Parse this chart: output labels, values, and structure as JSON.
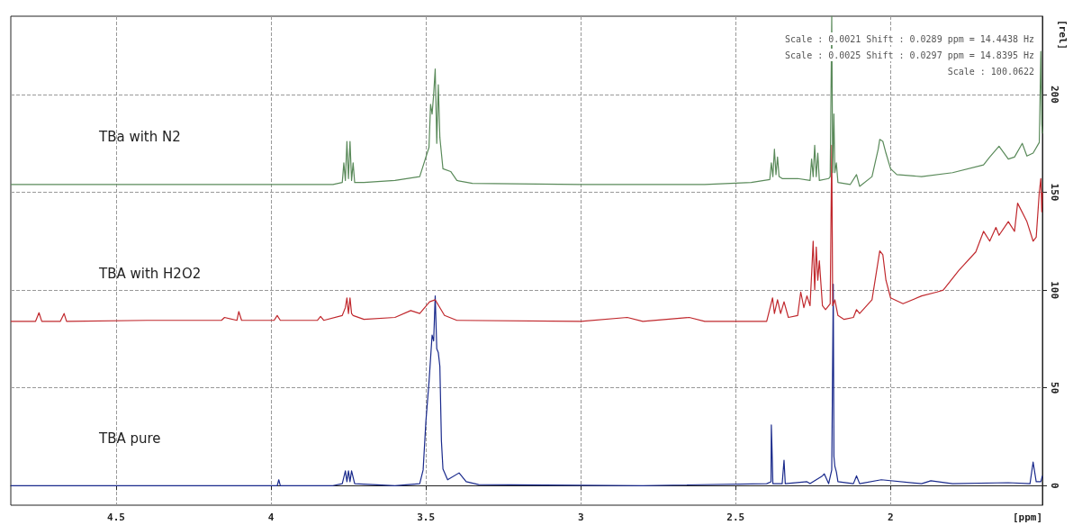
{
  "chart_data": {
    "type": "line",
    "xlabel": "[ppm]",
    "ylabel": "[rel]",
    "xlim": [
      4.84,
      1.51
    ],
    "xticks": [
      4.5,
      4.0,
      3.5,
      3.0,
      2.5,
      2.0
    ],
    "ylim": [
      -10,
      240
    ],
    "yticks": [
      0,
      50,
      100,
      150,
      200
    ],
    "grid": true,
    "legend": false,
    "marker": "none",
    "line_style": "solid",
    "annotations": [
      "Scale : 0.0021 Shift : 0.0289 ppm = 14.4438 Hz",
      "Scale : 0.0025 Shift : 0.0297 ppm = 14.8395 Hz",
      "Scale : 100.0622"
    ],
    "series": [
      {
        "name": "TBa with N2",
        "color": "#5a8a5a",
        "x": [
          4.84,
          4.6,
          4.3,
          4.0,
          3.8,
          3.77,
          3.765,
          3.76,
          3.755,
          3.75,
          3.745,
          3.74,
          3.735,
          3.73,
          3.7,
          3.6,
          3.52,
          3.49,
          3.485,
          3.48,
          3.475,
          3.47,
          3.465,
          3.46,
          3.455,
          3.45,
          3.445,
          3.42,
          3.4,
          3.35,
          3.0,
          2.6,
          2.45,
          2.39,
          2.385,
          2.38,
          2.375,
          2.37,
          2.365,
          2.36,
          2.35,
          2.3,
          2.26,
          2.255,
          2.25,
          2.245,
          2.24,
          2.235,
          2.23,
          2.2,
          2.195,
          2.19,
          2.187,
          2.183,
          2.18,
          2.175,
          2.17,
          2.13,
          2.11,
          2.1,
          2.06,
          2.04,
          2.035,
          2.025,
          2.015,
          2.0,
          1.98,
          1.9,
          1.8,
          1.7,
          1.68,
          1.65,
          1.62,
          1.6,
          1.575,
          1.56,
          1.54,
          1.52,
          1.515,
          1.512,
          1.51
        ],
        "values": [
          154,
          154,
          154,
          154,
          154,
          155,
          165,
          156,
          176,
          157,
          176,
          156,
          165,
          155,
          155,
          156,
          158,
          173,
          195,
          190,
          200,
          213,
          175,
          205,
          178,
          170,
          162,
          160.6,
          156,
          154.5,
          154,
          154,
          155,
          156.5,
          165,
          158,
          172,
          159,
          168,
          158,
          157,
          157,
          156,
          167,
          158,
          174,
          158,
          170,
          156,
          157,
          158,
          240,
          160,
          190,
          160,
          165,
          155,
          154,
          159,
          153,
          158,
          172,
          177,
          176,
          170,
          162,
          159,
          158,
          160,
          164,
          168,
          173.5,
          167,
          168,
          175,
          168.5,
          170,
          175.5,
          222,
          185,
          180
        ]
      },
      {
        "name": "TBA with H2O2",
        "color": "#c0282d",
        "x": [
          4.84,
          4.76,
          4.749,
          4.74,
          4.68,
          4.668,
          4.66,
          4.4,
          4.16,
          4.15,
          4.11,
          4.104,
          4.095,
          3.99,
          3.98,
          3.97,
          3.85,
          3.84,
          3.83,
          3.77,
          3.76,
          3.755,
          3.75,
          3.745,
          3.74,
          3.735,
          3.7,
          3.6,
          3.549,
          3.52,
          3.488,
          3.47,
          3.44,
          3.4,
          3.0,
          2.85,
          2.8,
          2.65,
          2.6,
          2.4,
          2.381,
          2.375,
          2.365,
          2.355,
          2.344,
          2.33,
          2.3,
          2.29,
          2.28,
          2.27,
          2.26,
          2.255,
          2.25,
          2.245,
          2.24,
          2.235,
          2.23,
          2.22,
          2.21,
          2.195,
          2.19,
          2.187,
          2.18,
          2.17,
          2.15,
          2.12,
          2.11,
          2.1,
          2.06,
          2.04,
          2.035,
          2.025,
          2.015,
          2.0,
          1.96,
          1.9,
          1.85,
          1.83,
          1.78,
          1.725,
          1.7,
          1.68,
          1.66,
          1.65,
          1.62,
          1.6,
          1.59,
          1.56,
          1.54,
          1.53,
          1.52,
          1.515,
          1.512,
          1.51
        ],
        "values": [
          84,
          84,
          88.4,
          84,
          84,
          88,
          84,
          84.5,
          84.5,
          86,
          84.5,
          89,
          84.5,
          84.5,
          87,
          84.5,
          84.5,
          86.5,
          84.5,
          87,
          91,
          96,
          88,
          96,
          88,
          87,
          85,
          86,
          89.5,
          88,
          94,
          95,
          87,
          84.5,
          84,
          86,
          84,
          86,
          84,
          84,
          96,
          88,
          95,
          88,
          94,
          86,
          87,
          99,
          91,
          97,
          92,
          108,
          125,
          100,
          122,
          105,
          115,
          92,
          90,
          93,
          174,
          92,
          95,
          87,
          85,
          86,
          90,
          88,
          95,
          115,
          120,
          118,
          105,
          96,
          93,
          97,
          99,
          100,
          110,
          119.5,
          130,
          125,
          132,
          128,
          135,
          130,
          144.4,
          135,
          125,
          127,
          150,
          157,
          140,
          150
        ]
      },
      {
        "name": "TBA pure",
        "color": "#1a2a8c",
        "x": [
          4.84,
          4.3,
          3.98,
          3.975,
          3.97,
          3.8,
          3.77,
          3.76,
          3.755,
          3.75,
          3.745,
          3.74,
          3.73,
          3.6,
          3.52,
          3.509,
          3.5,
          3.49,
          3.48,
          3.475,
          3.47,
          3.465,
          3.46,
          3.455,
          3.45,
          3.445,
          3.43,
          3.393,
          3.37,
          3.33,
          2.8,
          2.4,
          2.386,
          2.385,
          2.383,
          2.38,
          2.35,
          2.344,
          2.34,
          2.27,
          2.26,
          2.22,
          2.214,
          2.2,
          2.19,
          2.185,
          2.183,
          2.18,
          2.175,
          2.17,
          2.12,
          2.11,
          2.1,
          2.03,
          1.9,
          1.87,
          1.8,
          1.62,
          1.55,
          1.54,
          1.53,
          1.515,
          1.51
        ],
        "values": [
          0,
          0,
          0,
          3,
          0,
          0,
          1,
          7.6,
          2,
          7.6,
          2,
          7.6,
          1,
          0,
          1,
          8,
          33,
          53,
          77,
          74,
          97,
          70,
          68,
          61,
          23,
          8.5,
          3,
          6.5,
          2,
          0.5,
          0,
          1,
          2,
          31,
          20,
          1,
          1,
          13,
          1,
          2,
          1,
          5,
          6,
          1,
          8,
          103,
          15,
          10,
          7,
          2,
          1,
          5,
          1,
          3,
          1,
          2.5,
          1,
          1.5,
          1,
          12,
          2,
          2,
          5
        ]
      }
    ]
  }
}
